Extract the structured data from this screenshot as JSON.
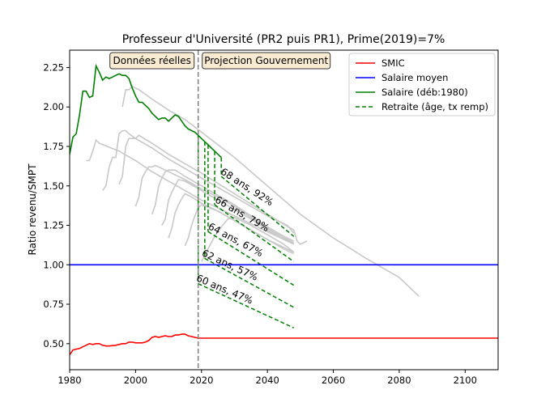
{
  "chart_data": {
    "type": "line",
    "title": "Professeur d'Université (PR2 puis PR1), Prime(2019)=7%",
    "xlabel": "",
    "ylabel": "Ratio revenu/SMPT",
    "xlim": [
      1980,
      2110
    ],
    "ylim": [
      0.335,
      2.36
    ],
    "x_ticks": [
      1980,
      2000,
      2020,
      2040,
      2060,
      2080,
      2100
    ],
    "y_ticks": [
      0.5,
      0.75,
      1.0,
      1.25,
      1.5,
      1.75,
      2.0,
      2.25
    ],
    "y_tick_labels": [
      "0.50",
      "0.75",
      "1.00",
      "1.25",
      "1.50",
      "1.75",
      "2.00",
      "2.25"
    ],
    "grid": false,
    "legend_position": "top-right",
    "vline_year": 2019,
    "period_labels": {
      "left": "Données réelles",
      "right": "Projection Gouvernement"
    },
    "legend": [
      {
        "label": "SMIC",
        "color": "#ff0000",
        "style": "solid"
      },
      {
        "label": "Salaire moyen",
        "color": "#0000ff",
        "style": "solid"
      },
      {
        "label": "Salaire (déb:1980)",
        "color": "#008000",
        "style": "solid"
      },
      {
        "label": "Retraite (âge, tx remp)",
        "color": "#008000",
        "style": "dashed"
      }
    ],
    "series": [
      {
        "name": "SMIC",
        "color": "#ff0000",
        "points": [
          [
            1980,
            0.43
          ],
          [
            1981,
            0.46
          ],
          [
            1982,
            0.465
          ],
          [
            1983,
            0.47
          ],
          [
            1984,
            0.48
          ],
          [
            1985,
            0.49
          ],
          [
            1986,
            0.5
          ],
          [
            1987,
            0.495
          ],
          [
            1988,
            0.5
          ],
          [
            1989,
            0.5
          ],
          [
            1990,
            0.49
          ],
          [
            1991,
            0.485
          ],
          [
            1992,
            0.485
          ],
          [
            1993,
            0.488
          ],
          [
            1994,
            0.49
          ],
          [
            1995,
            0.495
          ],
          [
            1996,
            0.5
          ],
          [
            1997,
            0.5
          ],
          [
            1998,
            0.51
          ],
          [
            1999,
            0.51
          ],
          [
            2000,
            0.505
          ],
          [
            2001,
            0.505
          ],
          [
            2002,
            0.505
          ],
          [
            2003,
            0.51
          ],
          [
            2004,
            0.52
          ],
          [
            2005,
            0.54
          ],
          [
            2006,
            0.545
          ],
          [
            2007,
            0.54
          ],
          [
            2008,
            0.545
          ],
          [
            2009,
            0.55
          ],
          [
            2010,
            0.545
          ],
          [
            2011,
            0.545
          ],
          [
            2012,
            0.555
          ],
          [
            2013,
            0.555
          ],
          [
            2014,
            0.56
          ],
          [
            2015,
            0.56
          ],
          [
            2016,
            0.55
          ],
          [
            2017,
            0.545
          ],
          [
            2018,
            0.54
          ],
          [
            2019,
            0.535
          ],
          [
            2110,
            0.535
          ]
        ]
      },
      {
        "name": "Salaire moyen",
        "color": "#0000ff",
        "points": [
          [
            1980,
            1.0
          ],
          [
            2110,
            1.0
          ]
        ]
      },
      {
        "name": "Salaire (déb:1980)",
        "color": "#008000",
        "points": [
          [
            1980,
            1.7
          ],
          [
            1981,
            1.81
          ],
          [
            1982,
            1.83
          ],
          [
            1983,
            1.95
          ],
          [
            1984,
            2.1
          ],
          [
            1985,
            2.1
          ],
          [
            1986,
            2.06
          ],
          [
            1987,
            2.07
          ],
          [
            1988,
            2.26
          ],
          [
            1989,
            2.22
          ],
          [
            1990,
            2.17
          ],
          [
            1991,
            2.19
          ],
          [
            1992,
            2.18
          ],
          [
            1993,
            2.19
          ],
          [
            1994,
            2.2
          ],
          [
            1995,
            2.21
          ],
          [
            1996,
            2.2
          ],
          [
            1997,
            2.2
          ],
          [
            1998,
            2.18
          ],
          [
            1999,
            2.12
          ],
          [
            2000,
            2.07
          ],
          [
            2001,
            2.03
          ],
          [
            2002,
            2.03
          ],
          [
            2003,
            2.01
          ],
          [
            2004,
            1.99
          ],
          [
            2005,
            1.96
          ],
          [
            2006,
            1.94
          ],
          [
            2007,
            1.92
          ],
          [
            2008,
            1.93
          ],
          [
            2009,
            1.93
          ],
          [
            2010,
            1.91
          ],
          [
            2011,
            1.93
          ],
          [
            2012,
            1.95
          ],
          [
            2013,
            1.94
          ],
          [
            2014,
            1.91
          ],
          [
            2015,
            1.88
          ],
          [
            2016,
            1.86
          ],
          [
            2017,
            1.85
          ],
          [
            2018,
            1.84
          ],
          [
            2019,
            1.82
          ],
          [
            2022,
            1.76
          ],
          [
            2024,
            1.72
          ],
          [
            2026,
            1.68
          ]
        ]
      }
    ],
    "background_series": [
      {
        "points": [
          [
            1985,
            1.66
          ],
          [
            1986,
            1.66
          ],
          [
            1987,
            1.72
          ],
          [
            1988,
            1.79
          ],
          [
            1989,
            1.77
          ],
          [
            1995,
            1.72
          ],
          [
            2000,
            1.66
          ],
          [
            2005,
            1.59
          ],
          [
            2010,
            1.53
          ],
          [
            2015,
            1.47
          ],
          [
            2020,
            1.41
          ],
          [
            2026,
            1.35
          ],
          [
            2032,
            1.29
          ],
          [
            2038,
            1.23
          ],
          [
            2044,
            1.17
          ],
          [
            2048,
            1.14
          ]
        ]
      },
      {
        "points": [
          [
            1990,
            1.47
          ],
          [
            1991,
            1.5
          ],
          [
            1992,
            1.62
          ],
          [
            1993,
            1.68
          ],
          [
            1994,
            1.68
          ],
          [
            1995,
            1.83
          ],
          [
            1996,
            1.85
          ],
          [
            1997,
            1.85
          ],
          [
            1998,
            1.83
          ],
          [
            2000,
            1.8
          ],
          [
            2005,
            1.74
          ],
          [
            2010,
            1.67
          ],
          [
            2015,
            1.61
          ],
          [
            2020,
            1.55
          ],
          [
            2025,
            1.49
          ],
          [
            2030,
            1.43
          ],
          [
            2040,
            1.31
          ],
          [
            2046,
            1.25
          ],
          [
            2048,
            1.2
          ]
        ]
      },
      {
        "points": [
          [
            1995,
            1.51
          ],
          [
            1996,
            1.56
          ],
          [
            1997,
            1.75
          ],
          [
            1998,
            1.8
          ],
          [
            1999,
            1.8
          ],
          [
            2000,
            1.8
          ],
          [
            2001,
            1.82
          ],
          [
            2005,
            1.77
          ],
          [
            2010,
            1.7
          ],
          [
            2015,
            1.64
          ],
          [
            2020,
            1.58
          ],
          [
            2030,
            1.45
          ],
          [
            2040,
            1.32
          ],
          [
            2048,
            1.22
          ],
          [
            2049,
            1.15
          ],
          [
            2050,
            1.13
          ],
          [
            2052,
            1.15
          ]
        ]
      },
      {
        "points": [
          [
            1996,
            2.0
          ],
          [
            1997,
            2.11
          ],
          [
            1998,
            2.11
          ],
          [
            1999,
            2.13
          ],
          [
            2000,
            2.12
          ],
          [
            2001,
            2.11
          ],
          [
            2005,
            2.05
          ],
          [
            2010,
            1.98
          ],
          [
            2015,
            1.92
          ],
          [
            2020,
            1.84
          ],
          [
            2030,
            1.68
          ],
          [
            2040,
            1.5
          ],
          [
            2050,
            1.32
          ],
          [
            2060,
            1.17
          ],
          [
            2070,
            1.04
          ],
          [
            2080,
            0.92
          ],
          [
            2086,
            0.8
          ]
        ]
      },
      {
        "points": [
          [
            2000,
            1.37
          ],
          [
            2001,
            1.43
          ],
          [
            2002,
            1.55
          ],
          [
            2003,
            1.59
          ],
          [
            2004,
            1.62
          ],
          [
            2005,
            1.62
          ],
          [
            2006,
            1.63
          ],
          [
            2010,
            1.59
          ],
          [
            2015,
            1.54
          ],
          [
            2020,
            1.48
          ],
          [
            2025,
            1.43
          ],
          [
            2030,
            1.37
          ],
          [
            2035,
            1.3
          ],
          [
            2040,
            1.23
          ],
          [
            2045,
            1.17
          ],
          [
            2048,
            1.14
          ]
        ]
      },
      {
        "points": [
          [
            2005,
            1.32
          ],
          [
            2006,
            1.38
          ],
          [
            2007,
            1.5
          ],
          [
            2008,
            1.55
          ],
          [
            2009,
            1.59
          ],
          [
            2010,
            1.6
          ],
          [
            2012,
            1.6
          ],
          [
            2015,
            1.56
          ],
          [
            2020,
            1.5
          ],
          [
            2025,
            1.44
          ],
          [
            2030,
            1.38
          ],
          [
            2035,
            1.31
          ],
          [
            2040,
            1.24
          ],
          [
            2045,
            1.18
          ],
          [
            2048,
            1.15
          ]
        ]
      },
      {
        "points": [
          [
            2008,
            1.25
          ],
          [
            2009,
            1.29
          ],
          [
            2010,
            1.41
          ],
          [
            2011,
            1.46
          ],
          [
            2012,
            1.5
          ],
          [
            2013,
            1.54
          ],
          [
            2015,
            1.53
          ],
          [
            2020,
            1.47
          ],
          [
            2025,
            1.41
          ],
          [
            2030,
            1.35
          ],
          [
            2035,
            1.29
          ],
          [
            2040,
            1.22
          ],
          [
            2045,
            1.16
          ],
          [
            2048,
            1.13
          ]
        ]
      },
      {
        "points": [
          [
            2010,
            1.17
          ],
          [
            2011,
            1.23
          ],
          [
            2012,
            1.33
          ],
          [
            2013,
            1.38
          ],
          [
            2014,
            1.42
          ],
          [
            2015,
            1.45
          ],
          [
            2017,
            1.43
          ],
          [
            2020,
            1.39
          ],
          [
            2025,
            1.34
          ],
          [
            2030,
            1.28
          ],
          [
            2035,
            1.22
          ],
          [
            2040,
            1.16
          ],
          [
            2045,
            1.11
          ],
          [
            2048,
            1.08
          ]
        ]
      },
      {
        "points": [
          [
            2015,
            1.12
          ],
          [
            2016,
            1.17
          ],
          [
            2017,
            1.25
          ],
          [
            2018,
            1.31
          ],
          [
            2019,
            1.36
          ],
          [
            2020,
            1.38
          ],
          [
            2025,
            1.34
          ],
          [
            2030,
            1.28
          ],
          [
            2035,
            1.22
          ],
          [
            2040,
            1.16
          ],
          [
            2045,
            1.1
          ],
          [
            2048,
            1.07
          ]
        ]
      },
      {
        "points": [
          [
            2020,
            1.02
          ],
          [
            2022,
            1.1
          ],
          [
            2024,
            1.18
          ],
          [
            2026,
            1.24
          ],
          [
            2028,
            1.29
          ],
          [
            2030,
            1.3
          ],
          [
            2035,
            1.25
          ],
          [
            2040,
            1.19
          ],
          [
            2045,
            1.13
          ],
          [
            2048,
            1.08
          ]
        ]
      }
    ],
    "retraite": [
      {
        "label": "60 ans, 47%",
        "drop": [
          2019,
          1.82,
          0.88
        ],
        "end": [
          2048,
          0.6
        ],
        "label_at": [
          2018.2,
          0.9
        ],
        "rot": 23
      },
      {
        "label": "62 ans, 57%",
        "drop": [
          2021,
          1.78,
          1.04
        ],
        "end": [
          2048,
          0.73
        ],
        "label_at": [
          2019.9,
          1.06
        ],
        "rot": 25
      },
      {
        "label": "64 ans, 67%",
        "drop": [
          2022,
          1.76,
          1.21
        ],
        "end": [
          2048,
          0.87
        ],
        "label_at": [
          2021.8,
          1.23
        ],
        "rot": 28
      },
      {
        "label": "66 ans, 79%",
        "drop": [
          2024,
          1.72,
          1.38
        ],
        "end": [
          2048,
          1.02
        ],
        "label_at": [
          2023.9,
          1.4
        ],
        "rot": 30
      },
      {
        "label": "68 ans, 92%",
        "drop": [
          2026,
          1.68,
          1.56
        ],
        "end": [
          2048,
          1.18
        ],
        "label_at": [
          2025.6,
          1.58
        ],
        "rot": 33
      }
    ]
  }
}
